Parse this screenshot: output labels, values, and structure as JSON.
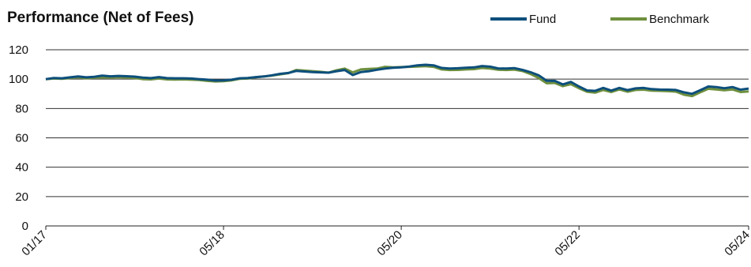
{
  "chart_data": {
    "type": "line",
    "title": "Performance (Net of Fees)",
    "x_ticks": [
      "01/17",
      "05/18",
      "05/20",
      "05/22",
      "05/24"
    ],
    "y_ticks": [
      0,
      20,
      40,
      60,
      80,
      100,
      120
    ],
    "ylim": [
      0,
      120
    ],
    "grid": true,
    "legend_position": "top-right",
    "series": [
      {
        "name": "Fund",
        "color": "#0d4f7c",
        "values": [
          100,
          100.8,
          100.6,
          101.2,
          101.8,
          101.2,
          101.6,
          102.4,
          101.9,
          102.2,
          102,
          101.7,
          101,
          100.7,
          101.4,
          100.7,
          100.6,
          100.6,
          100.4,
          100,
          99.6,
          99,
          99.2,
          99.6,
          100.6,
          100.8,
          101.4,
          101.8,
          102.6,
          103.6,
          104.2,
          105.6,
          105.2,
          104.8,
          104.6,
          104.4,
          105.4,
          106.2,
          102.8,
          104.8,
          105.4,
          106.4,
          107.2,
          107.8,
          108,
          108.6,
          109.4,
          109.8,
          109.4,
          107.6,
          107.2,
          107.4,
          107.8,
          108,
          108.9,
          108.5,
          107.3,
          107.2,
          107.5,
          106.3,
          104.7,
          102.6,
          98.9,
          98.8,
          96.4,
          98.1,
          95,
          92.3,
          92,
          94,
          92.2,
          94,
          92.5,
          93.7,
          94,
          93.2,
          92.9,
          92.8,
          92.6,
          91,
          90,
          92.4,
          95,
          94.6,
          93.8,
          94.6,
          92.8,
          93.6
        ]
      },
      {
        "name": "Benchmark",
        "color": "#6e8f3d",
        "values": [
          100,
          100.4,
          100.2,
          100.8,
          101.2,
          100.6,
          101,
          101.2,
          101.1,
          101.3,
          101.1,
          100.8,
          100,
          99.8,
          100.4,
          99.8,
          99.7,
          99.8,
          99.6,
          99.4,
          98.8,
          98.4,
          98.6,
          99.2,
          100.2,
          100.4,
          101.2,
          101.8,
          102.4,
          103.2,
          104,
          106.2,
          105.8,
          105.4,
          105,
          104.4,
          106,
          107.2,
          104.6,
          106.6,
          107,
          107.2,
          108.4,
          108,
          108.2,
          108.4,
          108.6,
          108.8,
          108.4,
          106.6,
          106.2,
          106.3,
          106.6,
          106.8,
          107.6,
          107.2,
          106.4,
          106.2,
          106.5,
          105.5,
          103.5,
          100.8,
          97.2,
          97.4,
          95.2,
          96.6,
          93.8,
          91.4,
          90.8,
          92.6,
          91.2,
          93,
          91.4,
          92.6,
          92.8,
          92.2,
          92,
          91.8,
          91.5,
          89.4,
          88.4,
          91,
          93.4,
          93,
          92.4,
          93,
          91.2,
          91.6
        ]
      }
    ]
  }
}
